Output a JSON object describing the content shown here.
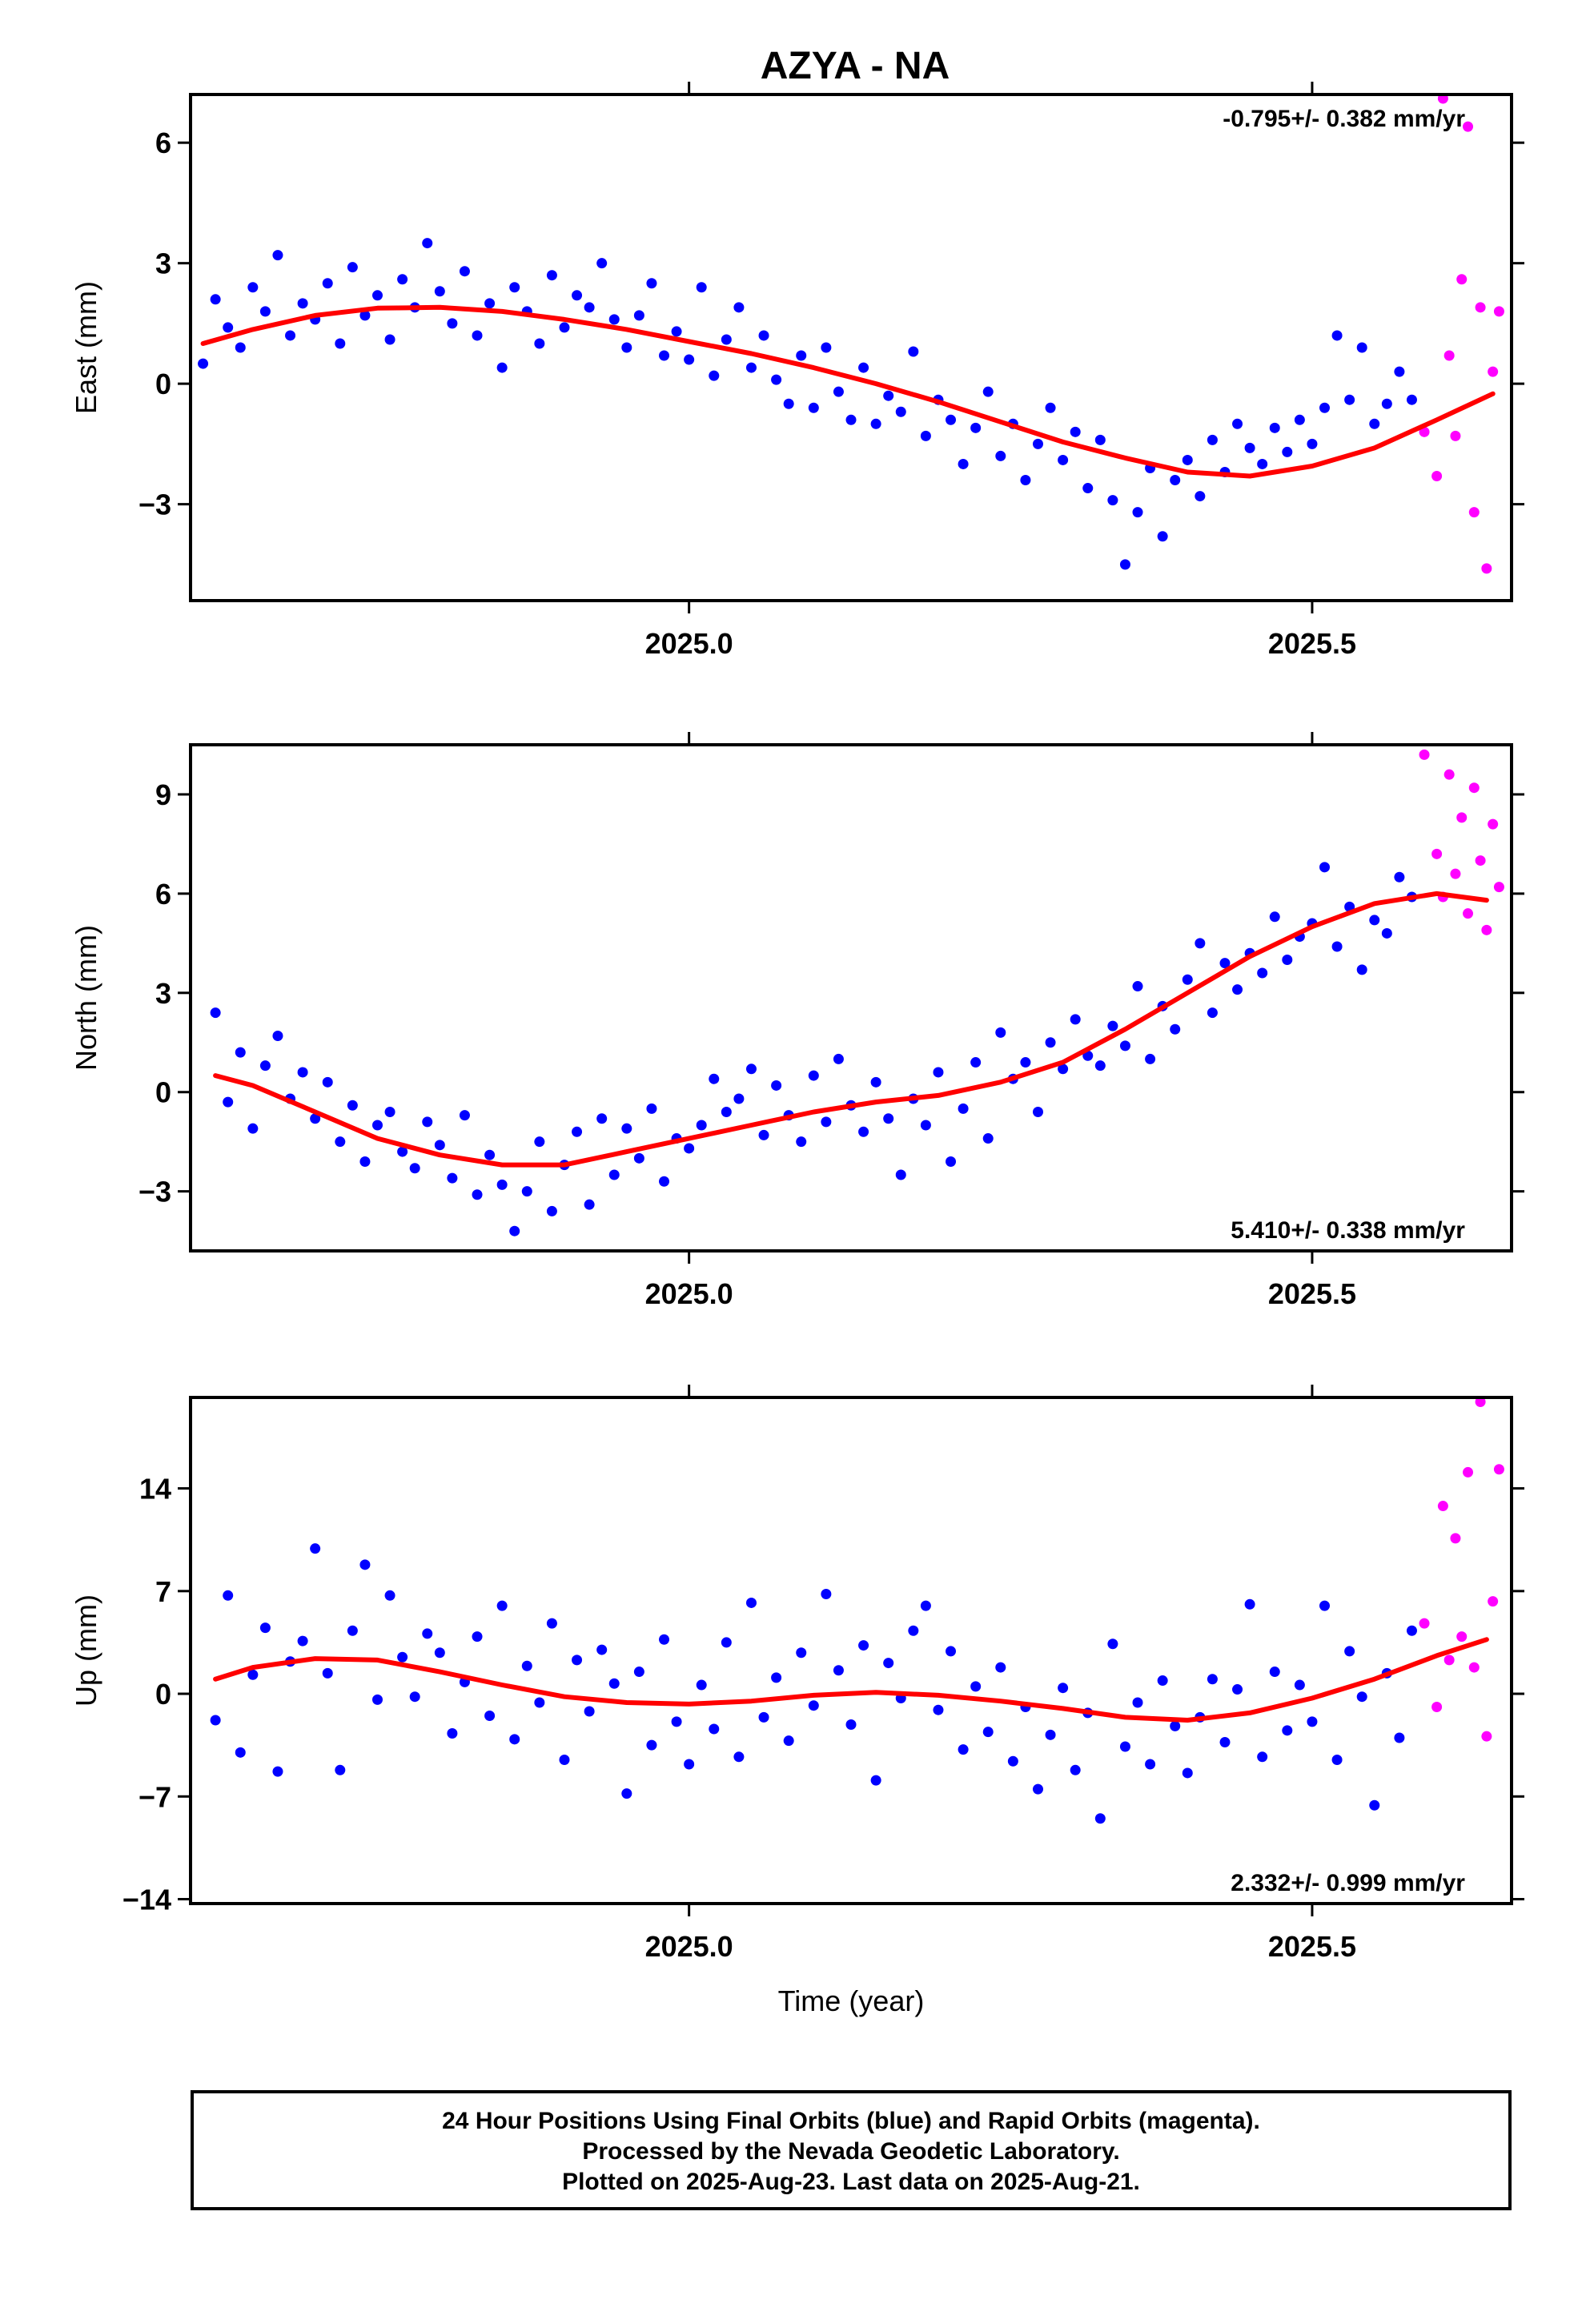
{
  "title": "AZYA - NA",
  "colors": {
    "final": "#0000ff",
    "rapid": "#ff00ff",
    "fit": "#ff0000",
    "axis": "#000000"
  },
  "caption": {
    "line1": "24 Hour Positions Using Final Orbits (blue) and Rapid Orbits (magenta).",
    "line2": "Processed by the Nevada Geodetic Laboratory.",
    "line3": "Plotted on 2025-Aug-23. Last data on 2025-Aug-21."
  },
  "chart_data": [
    {
      "type": "scatter",
      "component": "East",
      "ylabel": "East (mm)",
      "xlabel": "",
      "xlim": [
        2024.6,
        2025.66
      ],
      "ylim": [
        -5.4,
        7.2
      ],
      "xticks": [
        2025.0,
        2025.5
      ],
      "xtick_labels": [
        "2025.0",
        "2025.5"
      ],
      "yticks": [
        -3,
        0,
        3,
        6
      ],
      "ytick_labels": [
        "−3",
        "0",
        "3",
        "6"
      ],
      "rate_label": "-0.795+/- 0.382 mm/yr",
      "rate_position": "top-right",
      "grid": false,
      "fit": {
        "x": [
          2024.61,
          2024.65,
          2024.7,
          2024.75,
          2024.8,
          2024.85,
          2024.9,
          2024.95,
          2025.0,
          2025.05,
          2025.1,
          2025.15,
          2025.2,
          2025.25,
          2025.3,
          2025.35,
          2025.4,
          2025.45,
          2025.5,
          2025.55,
          2025.6,
          2025.645
        ],
        "y": [
          1.0,
          1.35,
          1.7,
          1.88,
          1.9,
          1.8,
          1.6,
          1.35,
          1.05,
          0.75,
          0.4,
          0.0,
          -0.45,
          -0.95,
          -1.45,
          -1.85,
          -2.2,
          -2.3,
          -2.05,
          -1.6,
          -0.9,
          -0.25
        ]
      },
      "final_orbits": {
        "x": [
          2024.61,
          2024.62,
          2024.63,
          2024.64,
          2024.65,
          2024.66,
          2024.67,
          2024.68,
          2024.69,
          2024.7,
          2024.71,
          2024.72,
          2024.73,
          2024.74,
          2024.75,
          2024.76,
          2024.77,
          2024.78,
          2024.79,
          2024.8,
          2024.81,
          2024.82,
          2024.83,
          2024.84,
          2024.85,
          2024.86,
          2024.87,
          2024.88,
          2024.89,
          2024.9,
          2024.91,
          2024.92,
          2024.93,
          2024.94,
          2024.95,
          2024.96,
          2024.97,
          2024.98,
          2024.99,
          2025.0,
          2025.01,
          2025.02,
          2025.03,
          2025.04,
          2025.05,
          2025.06,
          2025.07,
          2025.08,
          2025.09,
          2025.1,
          2025.11,
          2025.12,
          2025.13,
          2025.14,
          2025.15,
          2025.16,
          2025.17,
          2025.18,
          2025.19,
          2025.2,
          2025.21,
          2025.22,
          2025.23,
          2025.24,
          2025.25,
          2025.26,
          2025.27,
          2025.28,
          2025.29,
          2025.3,
          2025.31,
          2025.32,
          2025.33,
          2025.34,
          2025.35,
          2025.36,
          2025.37,
          2025.38,
          2025.39,
          2025.4,
          2025.41,
          2025.42,
          2025.43,
          2025.44,
          2025.45,
          2025.46,
          2025.47,
          2025.48,
          2025.49,
          2025.5,
          2025.51,
          2025.52,
          2025.53,
          2025.54,
          2025.55,
          2025.56,
          2025.57,
          2025.58
        ],
        "y": [
          0.5,
          2.1,
          1.4,
          0.9,
          2.4,
          1.8,
          3.2,
          1.2,
          2.0,
          1.6,
          2.5,
          1.0,
          2.9,
          1.7,
          2.2,
          1.1,
          2.6,
          1.9,
          3.5,
          2.3,
          1.5,
          2.8,
          1.2,
          2.0,
          0.4,
          2.4,
          1.8,
          1.0,
          2.7,
          1.4,
          2.2,
          1.9,
          3.0,
          1.6,
          0.9,
          1.7,
          2.5,
          0.7,
          1.3,
          0.6,
          2.4,
          0.2,
          1.1,
          1.9,
          0.4,
          1.2,
          0.1,
          -0.5,
          0.7,
          -0.6,
          0.9,
          -0.2,
          -0.9,
          0.4,
          -1.0,
          -0.3,
          -0.7,
          0.8,
          -1.3,
          -0.4,
          -0.9,
          -2.0,
          -1.1,
          -0.2,
          -1.8,
          -1.0,
          -2.4,
          -1.5,
          -0.6,
          -1.9,
          -1.2,
          -2.6,
          -1.4,
          -2.9,
          -4.5,
          -3.2,
          -2.1,
          -3.8,
          -2.4,
          -1.9,
          -2.8,
          -1.4,
          -2.2,
          -1.0,
          -1.6,
          -2.0,
          -1.1,
          -1.7,
          -0.9,
          -1.5,
          -0.6,
          1.2,
          -0.4,
          0.9,
          -1.0,
          -0.5,
          0.3,
          -0.4
        ]
      },
      "rapid_orbits": {
        "x": [
          2025.59,
          2025.6,
          2025.605,
          2025.61,
          2025.615,
          2025.62,
          2025.625,
          2025.63,
          2025.635,
          2025.64,
          2025.645,
          2025.65
        ],
        "y": [
          -1.2,
          -2.3,
          7.1,
          0.7,
          -1.3,
          2.6,
          6.4,
          -3.2,
          1.9,
          -4.6,
          0.3,
          1.8
        ]
      }
    },
    {
      "type": "scatter",
      "component": "North",
      "ylabel": "North (mm)",
      "xlabel": "",
      "xlim": [
        2024.6,
        2025.66
      ],
      "ylim": [
        -4.8,
        10.5
      ],
      "xticks": [
        2025.0,
        2025.5
      ],
      "xtick_labels": [
        "2025.0",
        "2025.5"
      ],
      "yticks": [
        -3,
        0,
        3,
        6,
        9
      ],
      "ytick_labels": [
        "−3",
        "0",
        "3",
        "6",
        "9"
      ],
      "rate_label": "5.410+/- 0.338 mm/yr",
      "rate_position": "bottom-right",
      "grid": false,
      "fit": {
        "x": [
          2024.62,
          2024.65,
          2024.7,
          2024.75,
          2024.8,
          2024.85,
          2024.9,
          2024.95,
          2025.0,
          2025.05,
          2025.1,
          2025.15,
          2025.2,
          2025.25,
          2025.3,
          2025.35,
          2025.4,
          2025.45,
          2025.5,
          2025.55,
          2025.6,
          2025.64
        ],
        "y": [
          0.5,
          0.2,
          -0.6,
          -1.4,
          -1.9,
          -2.2,
          -2.2,
          -1.8,
          -1.4,
          -1.0,
          -0.6,
          -0.3,
          -0.1,
          0.3,
          0.9,
          1.9,
          3.0,
          4.1,
          5.0,
          5.7,
          6.0,
          5.8
        ]
      },
      "final_orbits": {
        "x": [
          2024.62,
          2024.63,
          2024.64,
          2024.65,
          2024.66,
          2024.67,
          2024.68,
          2024.69,
          2024.7,
          2024.71,
          2024.72,
          2024.73,
          2024.74,
          2024.75,
          2024.76,
          2024.77,
          2024.78,
          2024.79,
          2024.8,
          2024.81,
          2024.82,
          2024.83,
          2024.84,
          2024.85,
          2024.86,
          2024.87,
          2024.88,
          2024.89,
          2024.9,
          2024.91,
          2024.92,
          2024.93,
          2024.94,
          2024.95,
          2024.96,
          2024.97,
          2024.98,
          2024.99,
          2025.0,
          2025.01,
          2025.02,
          2025.03,
          2025.04,
          2025.05,
          2025.06,
          2025.07,
          2025.08,
          2025.09,
          2025.1,
          2025.11,
          2025.12,
          2025.13,
          2025.14,
          2025.15,
          2025.16,
          2025.17,
          2025.18,
          2025.19,
          2025.2,
          2025.21,
          2025.22,
          2025.23,
          2025.24,
          2025.25,
          2025.26,
          2025.27,
          2025.28,
          2025.29,
          2025.3,
          2025.31,
          2025.32,
          2025.33,
          2025.34,
          2025.35,
          2025.36,
          2025.37,
          2025.38,
          2025.39,
          2025.4,
          2025.41,
          2025.42,
          2025.43,
          2025.44,
          2025.45,
          2025.46,
          2025.47,
          2025.48,
          2025.49,
          2025.5,
          2025.51,
          2025.52,
          2025.53,
          2025.54,
          2025.55,
          2025.56,
          2025.57,
          2025.58
        ],
        "y": [
          2.4,
          -0.3,
          1.2,
          -1.1,
          0.8,
          1.7,
          -0.2,
          0.6,
          -0.8,
          0.3,
          -1.5,
          -0.4,
          -2.1,
          -1.0,
          -0.6,
          -1.8,
          -2.3,
          -0.9,
          -1.6,
          -2.6,
          -0.7,
          -3.1,
          -1.9,
          -2.8,
          -4.2,
          -3.0,
          -1.5,
          -3.6,
          -2.2,
          -1.2,
          -3.4,
          -0.8,
          -2.5,
          -1.1,
          -2.0,
          -0.5,
          -2.7,
          -1.4,
          -1.7,
          -1.0,
          0.4,
          -0.6,
          -0.2,
          0.7,
          -1.3,
          0.2,
          -0.7,
          -1.5,
          0.5,
          -0.9,
          1.0,
          -0.4,
          -1.2,
          0.3,
          -0.8,
          -2.5,
          -0.2,
          -1.0,
          0.6,
          -2.1,
          -0.5,
          0.9,
          -1.4,
          1.8,
          0.4,
          0.9,
          -0.6,
          1.5,
          0.7,
          2.2,
          1.1,
          0.8,
          2.0,
          1.4,
          3.2,
          1.0,
          2.6,
          1.9,
          3.4,
          4.5,
          2.4,
          3.9,
          3.1,
          4.2,
          3.6,
          5.3,
          4.0,
          4.7,
          5.1,
          6.8,
          4.4,
          5.6,
          3.7,
          5.2,
          4.8,
          6.5,
          5.9
        ]
      },
      "rapid_orbits": {
        "x": [
          2025.59,
          2025.6,
          2025.605,
          2025.61,
          2025.615,
          2025.62,
          2025.625,
          2025.63,
          2025.635,
          2025.64,
          2025.645,
          2025.65
        ],
        "y": [
          10.2,
          7.2,
          5.9,
          9.6,
          6.6,
          8.3,
          5.4,
          9.2,
          7.0,
          4.9,
          8.1,
          6.2
        ]
      }
    },
    {
      "type": "scatter",
      "component": "Up",
      "ylabel": "Up (mm)",
      "xlabel": "Time (year)",
      "xlim": [
        2024.6,
        2025.66
      ],
      "ylim": [
        -14.3,
        20.2
      ],
      "xticks": [
        2025.0,
        2025.5
      ],
      "xtick_labels": [
        "2025.0",
        "2025.5"
      ],
      "yticks": [
        -14,
        -7,
        0,
        7,
        14
      ],
      "ytick_labels": [
        "−14",
        "−7",
        "0",
        "7",
        "14"
      ],
      "rate_label": "2.332+/- 0.999 mm/yr",
      "rate_position": "bottom-right",
      "grid": false,
      "fit": {
        "x": [
          2024.62,
          2024.65,
          2024.7,
          2024.75,
          2024.8,
          2024.85,
          2024.9,
          2024.95,
          2025.0,
          2025.05,
          2025.1,
          2025.15,
          2025.2,
          2025.25,
          2025.3,
          2025.35,
          2025.4,
          2025.45,
          2025.5,
          2025.55,
          2025.6,
          2025.64
        ],
        "y": [
          1.0,
          1.8,
          2.4,
          2.3,
          1.5,
          0.6,
          -0.2,
          -0.6,
          -0.7,
          -0.5,
          -0.1,
          0.1,
          -0.1,
          -0.5,
          -1.0,
          -1.6,
          -1.8,
          -1.3,
          -0.3,
          1.0,
          2.6,
          3.7
        ]
      },
      "final_orbits": {
        "x": [
          2024.62,
          2024.63,
          2024.64,
          2024.65,
          2024.66,
          2024.67,
          2024.68,
          2024.69,
          2024.7,
          2024.71,
          2024.72,
          2024.73,
          2024.74,
          2024.75,
          2024.76,
          2024.77,
          2024.78,
          2024.79,
          2024.8,
          2024.81,
          2024.82,
          2024.83,
          2024.84,
          2024.85,
          2024.86,
          2024.87,
          2024.88,
          2024.89,
          2024.9,
          2024.91,
          2024.92,
          2024.93,
          2024.94,
          2024.95,
          2024.96,
          2024.97,
          2024.98,
          2024.99,
          2025.0,
          2025.01,
          2025.02,
          2025.03,
          2025.04,
          2025.05,
          2025.06,
          2025.07,
          2025.08,
          2025.09,
          2025.1,
          2025.11,
          2025.12,
          2025.13,
          2025.14,
          2025.15,
          2025.16,
          2025.17,
          2025.18,
          2025.19,
          2025.2,
          2025.21,
          2025.22,
          2025.23,
          2025.24,
          2025.25,
          2025.26,
          2025.27,
          2025.28,
          2025.29,
          2025.3,
          2025.31,
          2025.32,
          2025.33,
          2025.34,
          2025.35,
          2025.36,
          2025.37,
          2025.38,
          2025.39,
          2025.4,
          2025.41,
          2025.42,
          2025.43,
          2025.44,
          2025.45,
          2025.46,
          2025.47,
          2025.48,
          2025.49,
          2025.5,
          2025.51,
          2025.52,
          2025.53,
          2025.54,
          2025.55,
          2025.56,
          2025.57,
          2025.58
        ],
        "y": [
          -1.8,
          6.7,
          -4.0,
          1.3,
          4.5,
          -5.3,
          2.2,
          3.6,
          9.9,
          1.4,
          -5.2,
          4.3,
          8.8,
          -0.4,
          6.7,
          2.5,
          -0.2,
          4.1,
          2.8,
          -2.7,
          0.8,
          3.9,
          -1.5,
          6.0,
          -3.1,
          1.9,
          -0.6,
          4.8,
          -4.5,
          2.3,
          -1.2,
          3.0,
          0.7,
          -6.8,
          1.5,
          -3.5,
          3.7,
          -1.9,
          -4.8,
          0.6,
          -2.4,
          3.5,
          -4.3,
          6.2,
          -1.6,
          1.1,
          -3.2,
          2.8,
          -0.8,
          6.8,
          1.6,
          -2.1,
          3.3,
          -5.9,
          2.1,
          -0.3,
          4.3,
          6.0,
          -1.1,
          2.9,
          -3.8,
          0.5,
          -2.6,
          1.8,
          -4.6,
          -0.9,
          -6.5,
          -2.8,
          0.4,
          -5.2,
          -1.3,
          -8.5,
          3.4,
          -3.6,
          -0.6,
          -4.8,
          0.9,
          -2.2,
          -5.4,
          -1.6,
          1.0,
          -3.3,
          0.3,
          6.1,
          -4.3,
          1.5,
          -2.5,
          0.6,
          -1.9,
          6.0,
          -4.5,
          2.9,
          -0.2,
          -7.6,
          1.4,
          -3.0,
          4.3
        ]
      },
      "rapid_orbits": {
        "x": [
          2025.59,
          2025.6,
          2025.605,
          2025.61,
          2025.615,
          2025.62,
          2025.625,
          2025.63,
          2025.635,
          2025.64,
          2025.645,
          2025.65
        ],
        "y": [
          4.8,
          -0.9,
          12.8,
          2.3,
          10.6,
          3.9,
          15.1,
          1.8,
          19.9,
          -2.9,
          6.3,
          15.3
        ]
      }
    }
  ]
}
